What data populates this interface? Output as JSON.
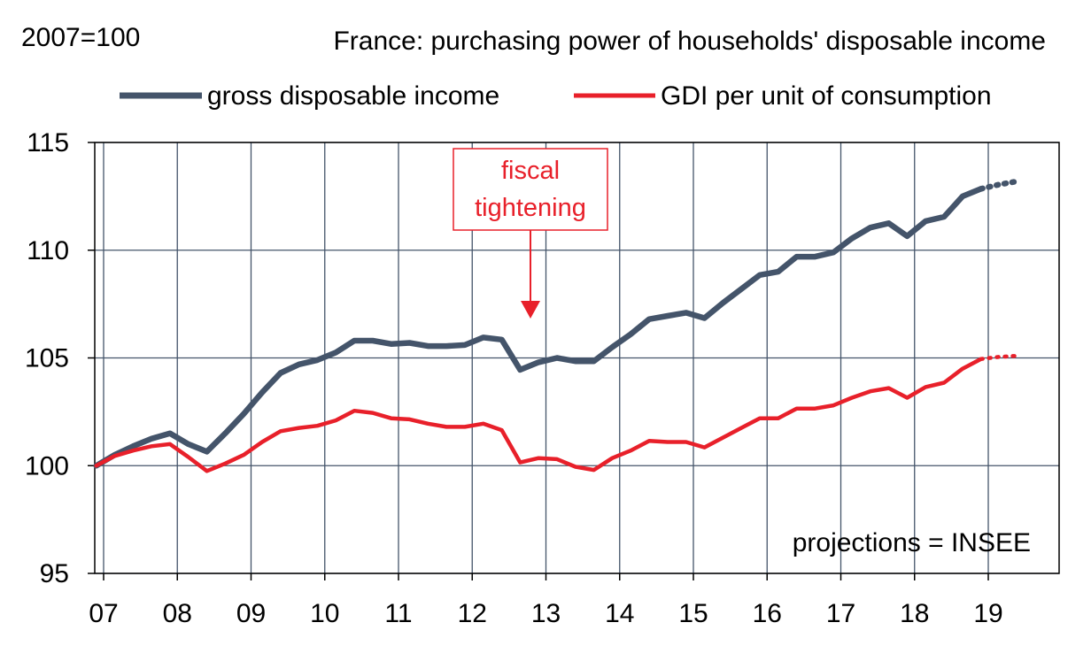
{
  "chart_data": {
    "type": "line",
    "title": "France: purchasing power of households' disposable income",
    "ylabel": "2007=100",
    "xlabel": "",
    "ylim": [
      95,
      115
    ],
    "yticks": [
      95,
      100,
      105,
      110,
      115
    ],
    "xlim": [
      2007,
      2020
    ],
    "xtick_labels": [
      "07",
      "08",
      "09",
      "10",
      "11",
      "12",
      "13",
      "14",
      "15",
      "16",
      "17",
      "18",
      "19"
    ],
    "grid": true,
    "legend_position": "top",
    "annotation": "fiscal tightening",
    "annotation_lines": [
      "fiscal",
      "tightening"
    ],
    "annotation_x": 2013.0,
    "note": "projections = INSEE",
    "series": [
      {
        "name": "gross disposable income",
        "color": "#44546a",
        "projection_start_x": 2019.0,
        "x": [
          2007.0,
          2007.25,
          2007.5,
          2007.75,
          2008.0,
          2008.25,
          2008.5,
          2008.75,
          2009.0,
          2009.25,
          2009.5,
          2009.75,
          2010.0,
          2010.25,
          2010.5,
          2010.75,
          2011.0,
          2011.25,
          2011.5,
          2011.75,
          2012.0,
          2012.25,
          2012.5,
          2012.75,
          2013.0,
          2013.25,
          2013.5,
          2013.75,
          2014.0,
          2014.25,
          2014.5,
          2014.75,
          2015.0,
          2015.25,
          2015.5,
          2015.75,
          2016.0,
          2016.25,
          2016.5,
          2016.75,
          2017.0,
          2017.25,
          2017.5,
          2017.75,
          2018.0,
          2018.25,
          2018.5,
          2018.75,
          2019.0,
          2019.25,
          2019.5
        ],
        "values": [
          100.0,
          100.5,
          100.9,
          101.25,
          101.5,
          101.0,
          100.65,
          101.5,
          102.4,
          103.4,
          104.3,
          104.7,
          104.9,
          105.25,
          105.8,
          105.8,
          105.65,
          105.7,
          105.55,
          105.55,
          105.6,
          105.95,
          105.85,
          104.45,
          104.8,
          105.0,
          104.85,
          104.85,
          105.5,
          106.1,
          106.8,
          106.95,
          107.1,
          106.85,
          107.55,
          108.2,
          108.85,
          109.0,
          109.7,
          109.7,
          109.9,
          110.55,
          111.05,
          111.25,
          110.65,
          111.35,
          111.55,
          112.5,
          112.85,
          113.05,
          113.2
        ]
      },
      {
        "name": "GDI per unit of consumption",
        "color": "#e8202a",
        "projection_start_x": 2019.0,
        "x": [
          2007.0,
          2007.25,
          2007.5,
          2007.75,
          2008.0,
          2008.25,
          2008.5,
          2008.75,
          2009.0,
          2009.25,
          2009.5,
          2009.75,
          2010.0,
          2010.25,
          2010.5,
          2010.75,
          2011.0,
          2011.25,
          2011.5,
          2011.75,
          2012.0,
          2012.25,
          2012.5,
          2012.75,
          2013.0,
          2013.25,
          2013.5,
          2013.75,
          2014.0,
          2014.25,
          2014.5,
          2014.75,
          2015.0,
          2015.25,
          2015.5,
          2015.75,
          2016.0,
          2016.25,
          2016.5,
          2016.75,
          2017.0,
          2017.25,
          2017.5,
          2017.75,
          2018.0,
          2018.25,
          2018.5,
          2018.75,
          2019.0,
          2019.25,
          2019.5
        ],
        "values": [
          100.0,
          100.45,
          100.7,
          100.9,
          101.0,
          100.4,
          99.75,
          100.1,
          100.5,
          101.1,
          101.6,
          101.75,
          101.85,
          102.1,
          102.55,
          102.45,
          102.2,
          102.15,
          101.95,
          101.8,
          101.8,
          101.95,
          101.65,
          100.15,
          100.35,
          100.3,
          99.95,
          99.8,
          100.35,
          100.7,
          101.15,
          101.1,
          101.1,
          100.85,
          101.3,
          101.75,
          102.2,
          102.2,
          102.65,
          102.65,
          102.8,
          103.15,
          103.45,
          103.6,
          103.15,
          103.65,
          103.85,
          104.5,
          104.95,
          105.05,
          105.1
        ]
      }
    ]
  }
}
